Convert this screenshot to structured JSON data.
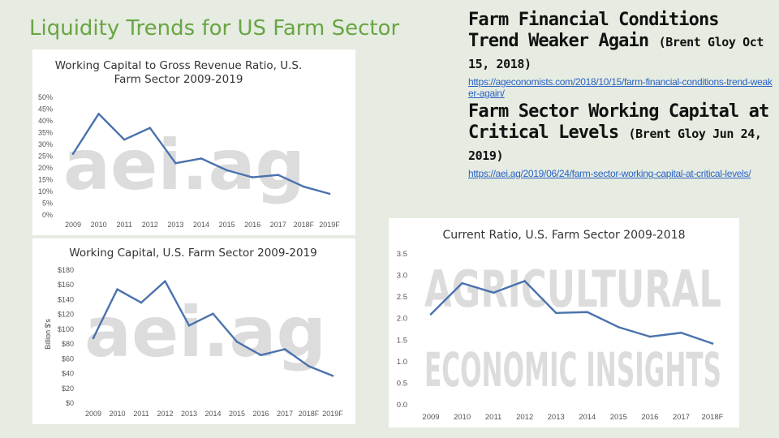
{
  "slide": {
    "title": "Liquidity Trends for US Farm Sector"
  },
  "references": [
    {
      "title": "Farm Financial Conditions Trend Weaker Again",
      "byline": "(Brent Gloy Oct 15, 2018)",
      "url": "https://ageconomists.com/2018/10/15/farm-financial-conditions-trend-weaker-again/"
    },
    {
      "title": "Farm Sector Working Capital at Critical Levels",
      "byline": "(Brent Gloy Jun 24, 2019)",
      "url": "https://aei.ag/2019/06/24/farm-sector-working-capital-at-critical-levels/"
    }
  ],
  "watermarks": {
    "chart1": "aei.ag",
    "chart2": "aei.ag",
    "chart3_line1": "AGRICULTURAL",
    "chart3_line2": "ECONOMIC INSIGHTS"
  },
  "colors": {
    "line": "#4a72ad",
    "accent_title": "#69a544",
    "link": "#2a62c7",
    "watermark": "#dcdcdc"
  },
  "chart_data": [
    {
      "type": "line",
      "title_lines": [
        "Working Capital to Gross Revenue Ratio, U.S.",
        "Farm Sector 2009-2019"
      ],
      "xlabel": "",
      "ylabel": "",
      "categories": [
        "2009",
        "2010",
        "2011",
        "2012",
        "2013",
        "2014",
        "2015",
        "2016",
        "2017",
        "2018F",
        "2019F"
      ],
      "series": [
        {
          "values": [
            26,
            43,
            32,
            37,
            22,
            24,
            19,
            16,
            17,
            12,
            9
          ]
        }
      ],
      "ylim": [
        0,
        50
      ],
      "yticks": [
        "0%",
        "5%",
        "10%",
        "15%",
        "20%",
        "25%",
        "30%",
        "35%",
        "40%",
        "45%",
        "50%"
      ],
      "grid": false,
      "legend": "none"
    },
    {
      "type": "line",
      "title_lines": [
        "Working Capital, U.S. Farm Sector 2009-2019"
      ],
      "xlabel": "",
      "ylabel": "Billion $'s",
      "categories": [
        "2009",
        "2010",
        "2011",
        "2012",
        "2013",
        "2014",
        "2015",
        "2016",
        "2017",
        "2018F",
        "2019F"
      ],
      "series": [
        {
          "values": [
            88,
            154,
            136,
            165,
            105,
            121,
            83,
            65,
            73,
            50,
            37
          ]
        }
      ],
      "ylim": [
        0,
        180
      ],
      "yticks": [
        "$0",
        "$20",
        "$40",
        "$60",
        "$80",
        "$100",
        "$120",
        "$140",
        "$160",
        "$180"
      ],
      "grid": false,
      "legend": "none"
    },
    {
      "type": "line",
      "title_lines": [
        "Current Ratio, U.S. Farm Sector 2009-2018"
      ],
      "xlabel": "",
      "ylabel": "",
      "categories": [
        "2009",
        "2010",
        "2011",
        "2012",
        "2013",
        "2014",
        "2015",
        "2016",
        "2017",
        "2018F"
      ],
      "series": [
        {
          "values": [
            2.1,
            2.82,
            2.6,
            2.87,
            2.13,
            2.15,
            1.8,
            1.58,
            1.67,
            1.42
          ]
        }
      ],
      "ylim": [
        0,
        3.5
      ],
      "yticks": [
        "0.0",
        "0.5",
        "1.0",
        "1.5",
        "2.0",
        "2.5",
        "3.0",
        "3.5"
      ],
      "grid": false,
      "legend": "none"
    }
  ]
}
